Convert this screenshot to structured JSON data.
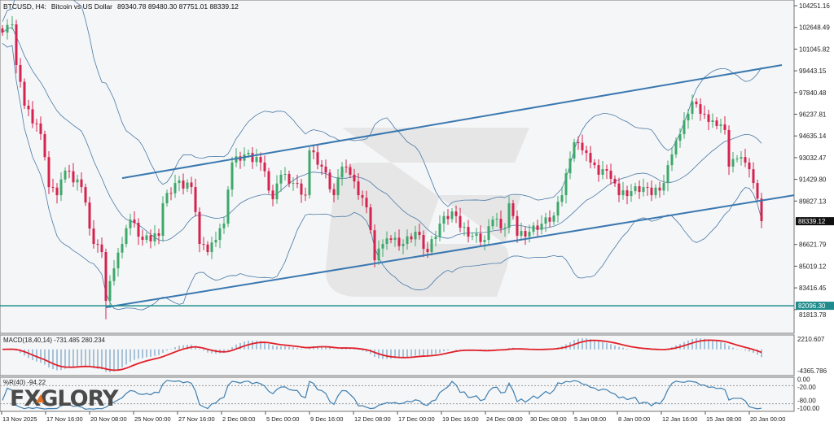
{
  "header": {
    "symbol": "BTCUSD, H4:",
    "description": "Bitcoin vs US Dollar",
    "ohlc": "89340.78 89480.30 87751.01 88339.12"
  },
  "watermark": {
    "logo_text": "FXGLORY"
  },
  "colors": {
    "bull": "#3ea86b",
    "bear": "#d4234f",
    "bands": "#4a7aa8",
    "channel": "#3a78b0",
    "support": "#1e8c8c",
    "macd_signal": "#e0202a",
    "macd_hist": "#5a8fb8",
    "wpr": "#3f7fb0",
    "background": "#f5f6f7"
  },
  "chart_data": [
    {
      "type": "candlestick",
      "title": "BTCUSD, H4:  Bitcoin vs US Dollar",
      "indicators": [
        "Bollinger Bands",
        "Ascending channel"
      ],
      "ylim": [
        80211.11,
        105050
      ],
      "y_ticks": [
        "104251.16",
        "102648.49",
        "101045.82",
        "99443.15",
        "97840.48",
        "96237.81",
        "94635.14",
        "93032.47",
        "91429.80",
        "89827.13",
        "86621.79",
        "85019.12",
        "83416.45",
        "81813.78"
      ],
      "x_ticks": [
        "13 Nov 2025",
        "17 Nov 16:00",
        "20 Nov 08:00",
        "25 Nov 00:00",
        "27 Nov 16:00",
        "2 Dec 08:00",
        "5 Dec 00:00",
        "9 Dec 16:00",
        "12 Dec 08:00",
        "17 Dec 00:00",
        "19 Dec 16:00",
        "24 Dec 08:00",
        "30 Dec 08:00",
        "5 Jan 08:00",
        "8 Jan 00:00",
        "12 Jan 16:00",
        "15 Jan 08:00",
        "20 Jan 00:00"
      ],
      "closes": [
        102270,
        102870,
        99870,
        96870,
        94770,
        90860,
        90260,
        92070,
        90860,
        86660,
        86060,
        82460,
        84860,
        86660,
        88460,
        86960,
        87260,
        89660,
        91160,
        90860,
        86660,
        86060,
        86960,
        88160,
        92670,
        93270,
        92670,
        89960,
        91770,
        91160,
        90260,
        93570,
        92370,
        90260,
        92370,
        91770,
        90260,
        89360,
        85460,
        86660,
        86960,
        86660,
        87560,
        86060,
        88160,
        89060,
        87860,
        87260,
        86960,
        88460,
        87860,
        89660,
        87260,
        87560,
        88160,
        88760,
        90260,
        92970,
        94170,
        93570,
        92670,
        91770,
        92070,
        91470,
        90260,
        90560,
        90860,
        90260,
        91160,
        93270,
        94770,
        96270,
        97170,
        96270,
        95670,
        95370,
        95070,
        92370,
        92970,
        92670,
        91160,
        88339.12
      ],
      "current_price": "88339.12",
      "support_level": "82096.30",
      "channel": {
        "upper": [
          91520,
          99870
        ],
        "lower": [
          81980,
          90260
        ]
      }
    },
    {
      "type": "line",
      "title": "MACD(18,40,14) -731.485 280.234",
      "y_ticks": [
        "2210.607",
        "-4365.786"
      ]
    },
    {
      "type": "line",
      "title": "%R(40) -94.22",
      "y_ticks": [
        "0.00",
        "-20.00",
        "-80.00",
        "-100.00"
      ],
      "ylim": [
        -100,
        0
      ]
    }
  ]
}
